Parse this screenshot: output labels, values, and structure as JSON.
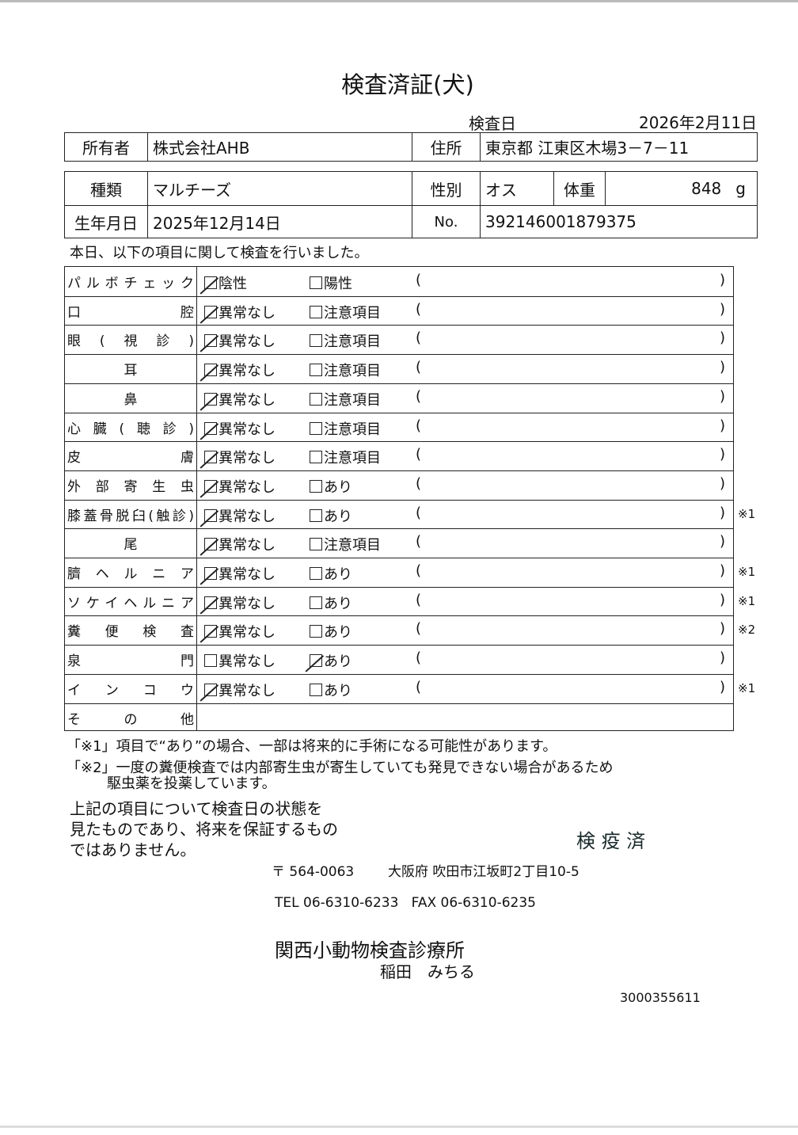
{
  "title": "検査済証(犬)",
  "exam_date_label": "検査日",
  "exam_date": "2026年2月11日",
  "owner_label": "所有者",
  "owner": "株式会社AHB",
  "address_label": "住所",
  "address": "東京都 江東区木場3－7－11",
  "breed_label": "種類",
  "breed": "マルチーズ",
  "sex_label": "性別",
  "sex": "オス",
  "weight_label": "体重",
  "weight": "848",
  "weight_unit": "g",
  "birth_label": "生年月日",
  "birth": "2025年12月14日",
  "no_label": "No.",
  "no": "392146001879375",
  "intro": "本日、以下の項目に関して検査を行いました。",
  "open_paren": "(",
  "close_paren": ")",
  "items": [
    {
      "label": "パルボチェック",
      "opt1": "陰性",
      "opt2": "陽性",
      "checked": 1,
      "note": ""
    },
    {
      "label": "口腔",
      "opt1": "異常なし",
      "opt2": "注意項目",
      "checked": 1,
      "note": ""
    },
    {
      "label": "眼(視診)",
      "opt1": "異常なし",
      "opt2": "注意項目",
      "checked": 1,
      "note": ""
    },
    {
      "label": "耳",
      "opt1": "異常なし",
      "opt2": "注意項目",
      "checked": 1,
      "note": ""
    },
    {
      "label": "鼻",
      "opt1": "異常なし",
      "opt2": "注意項目",
      "checked": 1,
      "note": ""
    },
    {
      "label": "心臓(聴診)",
      "opt1": "異常なし",
      "opt2": "注意項目",
      "checked": 1,
      "note": ""
    },
    {
      "label": "皮膚",
      "opt1": "異常なし",
      "opt2": "注意項目",
      "checked": 1,
      "note": ""
    },
    {
      "label": "外部寄生虫",
      "opt1": "異常なし",
      "opt2": "あり",
      "checked": 1,
      "note": ""
    },
    {
      "label": "膝蓋骨脱臼(触診)",
      "opt1": "異常なし",
      "opt2": "あり",
      "checked": 1,
      "note": "※1"
    },
    {
      "label": "尾",
      "opt1": "異常なし",
      "opt2": "注意項目",
      "checked": 1,
      "note": ""
    },
    {
      "label": "臍ヘルニア",
      "opt1": "異常なし",
      "opt2": "あり",
      "checked": 1,
      "note": "※1"
    },
    {
      "label": "ソケイヘルニア",
      "opt1": "異常なし",
      "opt2": "あり",
      "checked": 1,
      "note": "※1"
    },
    {
      "label": "糞便検査",
      "opt1": "異常なし",
      "opt2": "あり",
      "checked": 1,
      "note": "※2"
    },
    {
      "label": "泉門",
      "opt1": "異常なし",
      "opt2": "あり",
      "checked": 2,
      "note": ""
    },
    {
      "label": "インコウ",
      "opt1": "異常なし",
      "opt2": "あり",
      "checked": 1,
      "note": "※1"
    }
  ],
  "other_label": "その他",
  "footnote1": "「※1」項目で“あり”の場合、一部は将来的に手術になる可能性があります。",
  "footnote2_line1": "「※2」一度の糞便検査では内部寄生虫が寄生していても発見できない場合があるため",
  "footnote2_line2": "駆虫薬を投薬しています。",
  "disclaimer": [
    "上記の項目について検査日の状態を",
    "見たものであり、将来を保証するもの",
    "ではありません。"
  ],
  "stamp": "検 疫 済",
  "postal": "〒 564-0063",
  "clinic_address": "大阪府 吹田市江坂町2丁目10-5",
  "tel_fax": "TEL 06-6310-6233   FAX 06-6310-6235",
  "clinic_name": "関西小動物検査診療所",
  "doctor": "稲田　みちる",
  "doc_number": "3000355611"
}
